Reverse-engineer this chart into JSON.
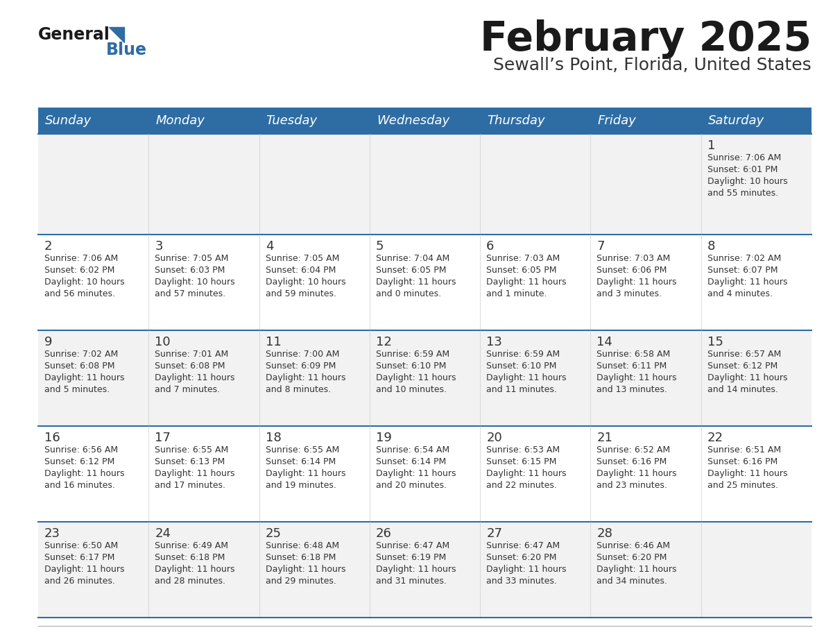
{
  "title": "February 2025",
  "subtitle": "Sewall’s Point, Florida, United States",
  "header_bg": "#2e6da4",
  "header_text_color": "#ffffff",
  "cell_bg_odd": "#f2f2f2",
  "cell_bg_even": "#ffffff",
  "divider_color": "#2e6da4",
  "text_color": "#333333",
  "days_of_week": [
    "Sunday",
    "Monday",
    "Tuesday",
    "Wednesday",
    "Thursday",
    "Friday",
    "Saturday"
  ],
  "calendar_data": [
    [
      null,
      null,
      null,
      null,
      null,
      null,
      {
        "day": 1,
        "sunrise": "7:06 AM",
        "sunset": "6:01 PM",
        "daylight": "10 hours and 55 minutes."
      }
    ],
    [
      {
        "day": 2,
        "sunrise": "7:06 AM",
        "sunset": "6:02 PM",
        "daylight": "10 hours and 56 minutes."
      },
      {
        "day": 3,
        "sunrise": "7:05 AM",
        "sunset": "6:03 PM",
        "daylight": "10 hours and 57 minutes."
      },
      {
        "day": 4,
        "sunrise": "7:05 AM",
        "sunset": "6:04 PM",
        "daylight": "10 hours and 59 minutes."
      },
      {
        "day": 5,
        "sunrise": "7:04 AM",
        "sunset": "6:05 PM",
        "daylight": "11 hours and 0 minutes."
      },
      {
        "day": 6,
        "sunrise": "7:03 AM",
        "sunset": "6:05 PM",
        "daylight": "11 hours and 1 minute."
      },
      {
        "day": 7,
        "sunrise": "7:03 AM",
        "sunset": "6:06 PM",
        "daylight": "11 hours and 3 minutes."
      },
      {
        "day": 8,
        "sunrise": "7:02 AM",
        "sunset": "6:07 PM",
        "daylight": "11 hours and 4 minutes."
      }
    ],
    [
      {
        "day": 9,
        "sunrise": "7:02 AM",
        "sunset": "6:08 PM",
        "daylight": "11 hours and 5 minutes."
      },
      {
        "day": 10,
        "sunrise": "7:01 AM",
        "sunset": "6:08 PM",
        "daylight": "11 hours and 7 minutes."
      },
      {
        "day": 11,
        "sunrise": "7:00 AM",
        "sunset": "6:09 PM",
        "daylight": "11 hours and 8 minutes."
      },
      {
        "day": 12,
        "sunrise": "6:59 AM",
        "sunset": "6:10 PM",
        "daylight": "11 hours and 10 minutes."
      },
      {
        "day": 13,
        "sunrise": "6:59 AM",
        "sunset": "6:10 PM",
        "daylight": "11 hours and 11 minutes."
      },
      {
        "day": 14,
        "sunrise": "6:58 AM",
        "sunset": "6:11 PM",
        "daylight": "11 hours and 13 minutes."
      },
      {
        "day": 15,
        "sunrise": "6:57 AM",
        "sunset": "6:12 PM",
        "daylight": "11 hours and 14 minutes."
      }
    ],
    [
      {
        "day": 16,
        "sunrise": "6:56 AM",
        "sunset": "6:12 PM",
        "daylight": "11 hours and 16 minutes."
      },
      {
        "day": 17,
        "sunrise": "6:55 AM",
        "sunset": "6:13 PM",
        "daylight": "11 hours and 17 minutes."
      },
      {
        "day": 18,
        "sunrise": "6:55 AM",
        "sunset": "6:14 PM",
        "daylight": "11 hours and 19 minutes."
      },
      {
        "day": 19,
        "sunrise": "6:54 AM",
        "sunset": "6:14 PM",
        "daylight": "11 hours and 20 minutes."
      },
      {
        "day": 20,
        "sunrise": "6:53 AM",
        "sunset": "6:15 PM",
        "daylight": "11 hours and 22 minutes."
      },
      {
        "day": 21,
        "sunrise": "6:52 AM",
        "sunset": "6:16 PM",
        "daylight": "11 hours and 23 minutes."
      },
      {
        "day": 22,
        "sunrise": "6:51 AM",
        "sunset": "6:16 PM",
        "daylight": "11 hours and 25 minutes."
      }
    ],
    [
      {
        "day": 23,
        "sunrise": "6:50 AM",
        "sunset": "6:17 PM",
        "daylight": "11 hours and 26 minutes."
      },
      {
        "day": 24,
        "sunrise": "6:49 AM",
        "sunset": "6:18 PM",
        "daylight": "11 hours and 28 minutes."
      },
      {
        "day": 25,
        "sunrise": "6:48 AM",
        "sunset": "6:18 PM",
        "daylight": "11 hours and 29 minutes."
      },
      {
        "day": 26,
        "sunrise": "6:47 AM",
        "sunset": "6:19 PM",
        "daylight": "11 hours and 31 minutes."
      },
      {
        "day": 27,
        "sunrise": "6:47 AM",
        "sunset": "6:20 PM",
        "daylight": "11 hours and 33 minutes."
      },
      {
        "day": 28,
        "sunrise": "6:46 AM",
        "sunset": "6:20 PM",
        "daylight": "11 hours and 34 minutes."
      },
      null
    ]
  ],
  "fig_width": 11.88,
  "fig_height": 9.18,
  "dpi": 100
}
